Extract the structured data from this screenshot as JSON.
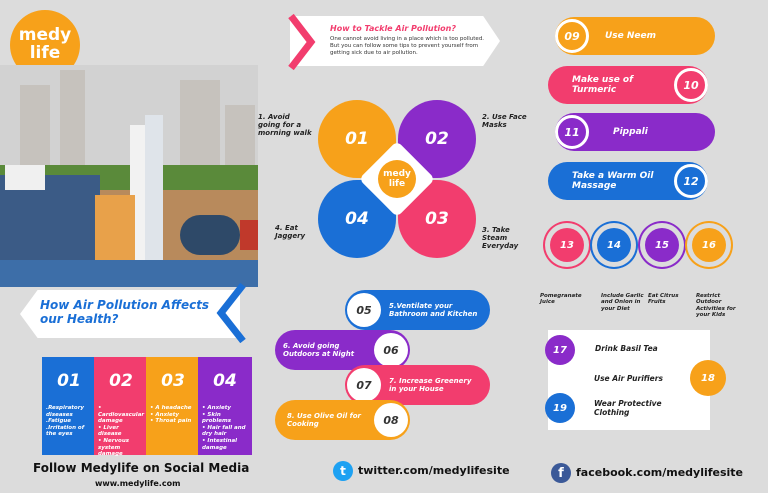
{
  "logo": {
    "line1": "medy",
    "line2": "life"
  },
  "colors": {
    "orange": "#f7a11a",
    "pink": "#f23d6e",
    "purple": "#8a2bc9",
    "blue": "#1a6fd6",
    "background": "#dcdcdc"
  },
  "tackle": {
    "title": "How to Tackle Air Pollution?",
    "body": "One cannot avoid living in a place which is too polluted. But you can follow some tips to prevent yourself from getting sick due to air pollution."
  },
  "petals": [
    {
      "num": "01",
      "label": "1. Avoid going for a morning walk"
    },
    {
      "num": "02",
      "label": "2. Use Face Masks"
    },
    {
      "num": "03",
      "label": "3. Take Steam Everyday"
    },
    {
      "num": "04",
      "label": "4. Eat Jaggery"
    }
  ],
  "affects": {
    "title": "How Air Pollution Affects our Health?",
    "columns": [
      {
        "num": "01",
        "text": ".Respiratory diseases\n.Fatigue\n.Irritation of the eyes"
      },
      {
        "num": "02",
        "text": "• Cardiovascular damage\n• Liver disease\n• Nervous system damage"
      },
      {
        "num": "03",
        "text": "• A headache\n• Anxiety\n• Throat pain"
      },
      {
        "num": "04",
        "text": "• Anxiety\n• Skin problems\n• Hair fall and dry hair\n• Intestinal damage"
      }
    ]
  },
  "tips_mid": [
    {
      "num": "05",
      "label": "5.Ventilate your Bathroom and Kitchen"
    },
    {
      "num": "06",
      "label": "6. Avoid going Outdoors at Night"
    },
    {
      "num": "07",
      "label": "7. Increase Greenery in your House"
    },
    {
      "num": "08",
      "label": "8. Use Olive Oil for Cooking"
    }
  ],
  "tips_right": [
    {
      "num": "09",
      "label": "Use Neem"
    },
    {
      "num": "10",
      "label": "Make use of Turmeric"
    },
    {
      "num": "11",
      "label": "Pippali"
    },
    {
      "num": "12",
      "label": "Take a Warm Oil Massage"
    }
  ],
  "circles": [
    {
      "num": "13",
      "label": "Pomegranate Juice"
    },
    {
      "num": "14",
      "label": "Include Garlic and Onion in your Diet"
    },
    {
      "num": "15",
      "label": "Eat Citrus Fruits"
    },
    {
      "num": "16",
      "label": "Restrict Outdoor Activities for your Kids"
    }
  ],
  "final": [
    {
      "num": "17",
      "label": "Drink Basil Tea"
    },
    {
      "num": "18",
      "label": "Use Air Purifiers"
    },
    {
      "num": "19",
      "label": "Wear Protective Clothing"
    }
  ],
  "footer": {
    "follow": "Follow Medylife on Social Media",
    "website": "www.medylife.com",
    "twitter": "twitter.com/medylifesite",
    "facebook": "facebook.com/medylifesite"
  }
}
